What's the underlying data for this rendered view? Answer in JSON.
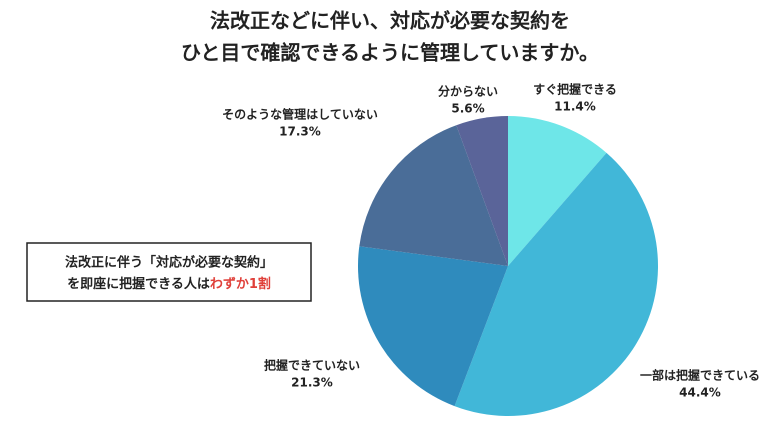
{
  "chart_data": {
    "type": "pie",
    "title": [
      "法改正などに伴い、対応が必要な契約を",
      "ひと目で確認できるように管理していますか。"
    ],
    "categories": [
      "すぐ把握できる",
      "一部は把握できている",
      "把握できていない",
      "そのような管理はしていない",
      "分からない"
    ],
    "values": [
      11.4,
      44.4,
      21.3,
      17.3,
      5.6
    ],
    "value_labels": [
      "11.4%",
      "44.4%",
      "21.3%",
      "17.3%",
      "5.6%"
    ],
    "colors": [
      "#6ee6e8",
      "#41b7d8",
      "#2f8bbd",
      "#4a6d98",
      "#5a6499"
    ],
    "annotation": {
      "lines": [
        "法改正に伴う「対応が必要な契約」",
        "を即座に把握できる人は"
      ],
      "highlight": "わずか1割",
      "highlight_color": "#e0403a"
    }
  }
}
